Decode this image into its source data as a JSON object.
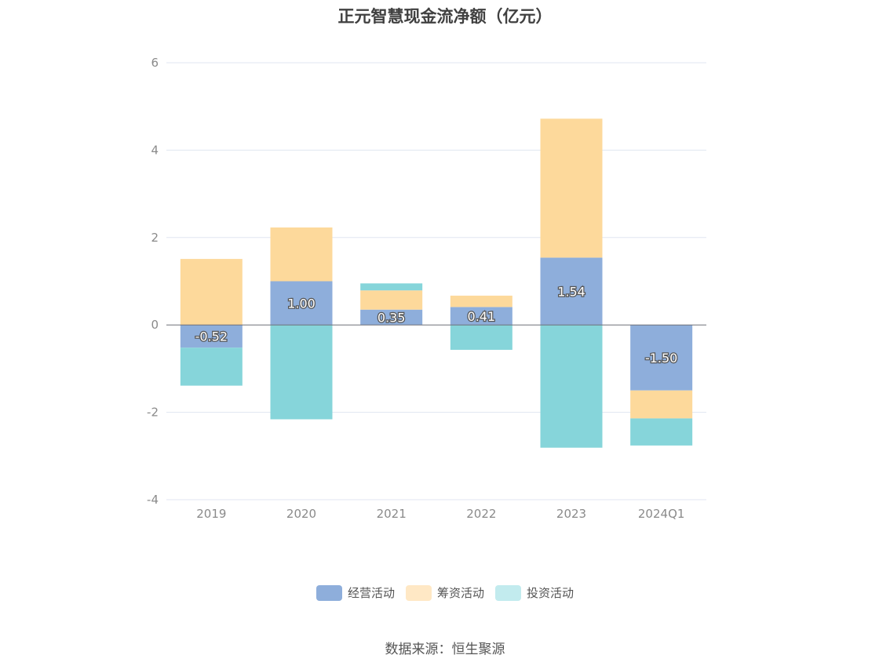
{
  "chart_data": {
    "type": "bar",
    "stacked": true,
    "title": "正元智慧现金流净额（亿元）",
    "categories": [
      "2019",
      "2020",
      "2021",
      "2022",
      "2023",
      "2024Q1"
    ],
    "series": [
      {
        "name": "经营活动",
        "color": "#8eaedb",
        "values": [
          -0.52,
          1.0,
          0.35,
          0.41,
          1.54,
          -1.5
        ],
        "labels": [
          "-0.52",
          "1.00",
          "0.35",
          "0.41",
          "1.54",
          "-1.50"
        ]
      },
      {
        "name": "筹资活动",
        "color": "#fdd99b",
        "values": [
          1.51,
          1.23,
          0.44,
          0.26,
          3.18,
          -0.64
        ]
      },
      {
        "name": "投资活动",
        "color": "#86d5da",
        "values": [
          -0.87,
          -2.16,
          0.16,
          -0.57,
          -2.81,
          -0.62
        ]
      }
    ],
    "yticks": [
      "6",
      "4",
      "2",
      "0",
      "-2",
      "-4"
    ],
    "ylim": [
      -4,
      6
    ],
    "xlabel": "",
    "ylabel": "",
    "grid": true,
    "legend_position": "bottom"
  },
  "legend": {
    "items": [
      {
        "label": "经营活动",
        "color": "#8eaedb"
      },
      {
        "label": "筹资活动",
        "color": "#ffe8c5"
      },
      {
        "label": "投资活动",
        "color": "#c2ebee"
      }
    ]
  },
  "source": "数据来源：恒生聚源"
}
